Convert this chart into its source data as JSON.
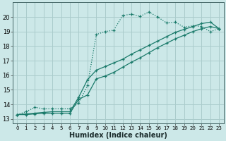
{
  "background_color": "#cce8e8",
  "grid_color": "#aacccc",
  "line_color": "#1a7a6a",
  "xlim": [
    -0.5,
    23.5
  ],
  "ylim": [
    12.7,
    21.0
  ],
  "xlabel": "Humidex (Indice chaleur)",
  "xticks": [
    0,
    1,
    2,
    3,
    4,
    5,
    6,
    7,
    8,
    9,
    10,
    11,
    12,
    13,
    14,
    15,
    16,
    17,
    18,
    19,
    20,
    21,
    22,
    23
  ],
  "yticks": [
    13,
    14,
    15,
    16,
    17,
    18,
    19,
    20
  ],
  "curve1_x": [
    0,
    1,
    2,
    3,
    4,
    5,
    6,
    7,
    8,
    9,
    10,
    11,
    12,
    13,
    14,
    15,
    16,
    17,
    18,
    19,
    20,
    21,
    22,
    23
  ],
  "curve1_y": [
    13.3,
    13.5,
    13.8,
    13.7,
    13.7,
    13.7,
    13.7,
    14.1,
    15.3,
    18.8,
    19.0,
    19.1,
    20.1,
    20.2,
    20.05,
    20.35,
    20.0,
    19.6,
    19.65,
    19.3,
    19.4,
    19.35,
    19.0,
    19.2
  ],
  "curve2_x": [
    0,
    1,
    2,
    3,
    4,
    5,
    6,
    7,
    8,
    9,
    10,
    11,
    12,
    13,
    14,
    15,
    16,
    17,
    18,
    19,
    20,
    21,
    22,
    23
  ],
  "curve2_y": [
    13.3,
    13.35,
    13.4,
    13.45,
    13.5,
    13.5,
    13.5,
    14.5,
    15.7,
    16.35,
    16.6,
    16.85,
    17.1,
    17.45,
    17.75,
    18.05,
    18.35,
    18.65,
    18.95,
    19.15,
    19.35,
    19.55,
    19.65,
    19.2
  ],
  "curve3_x": [
    0,
    1,
    2,
    3,
    4,
    5,
    6,
    7,
    8,
    9,
    10,
    11,
    12,
    13,
    14,
    15,
    16,
    17,
    18,
    19,
    20,
    21,
    22,
    23
  ],
  "curve3_y": [
    13.3,
    13.3,
    13.35,
    13.4,
    13.4,
    13.4,
    13.4,
    14.35,
    14.65,
    15.75,
    15.95,
    16.2,
    16.55,
    16.9,
    17.2,
    17.55,
    17.9,
    18.2,
    18.5,
    18.75,
    19.0,
    19.2,
    19.35,
    19.2
  ]
}
